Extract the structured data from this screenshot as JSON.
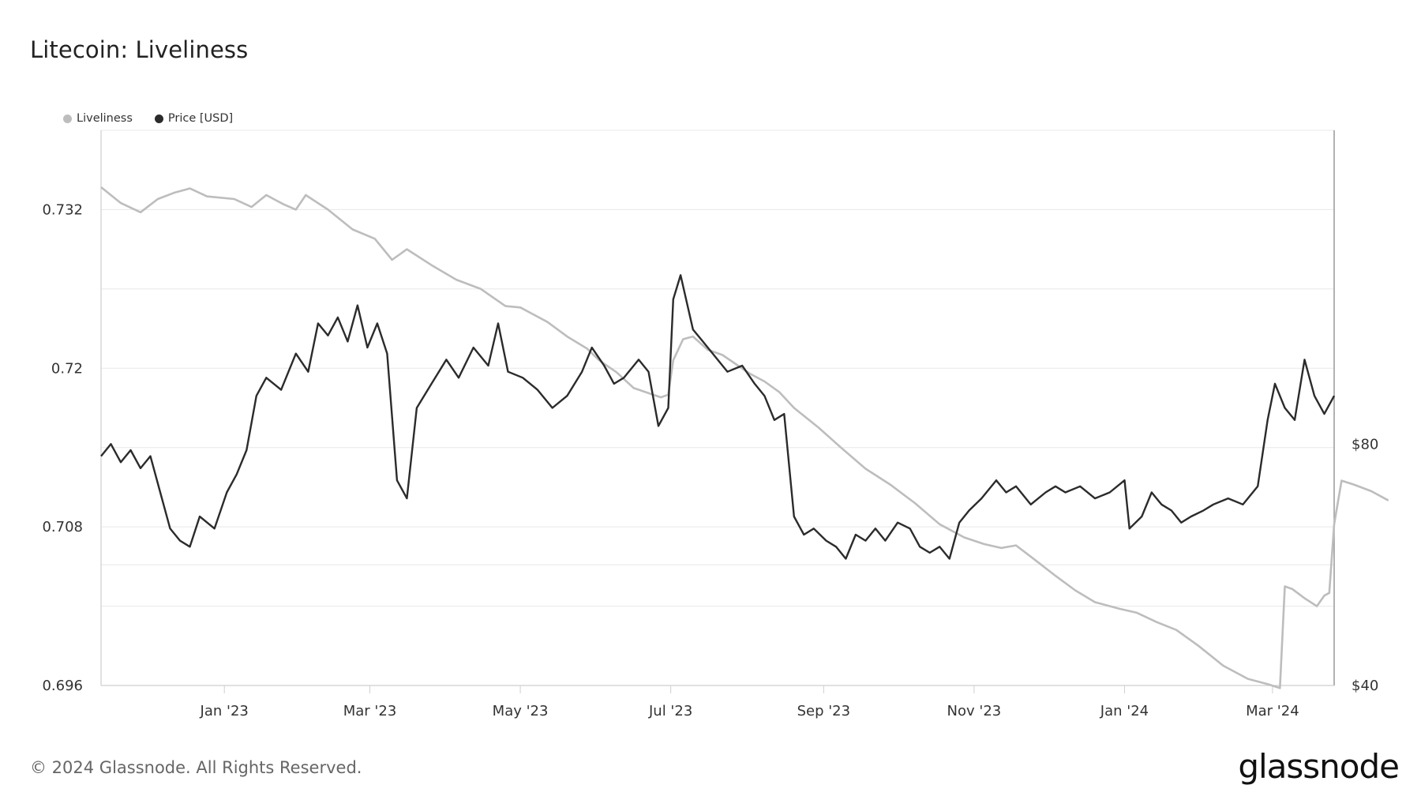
{
  "title": "Litecoin: Liveliness",
  "footer": "© 2024 Glassnode. All Rights Reserved.",
  "brand": "glassnode",
  "colors": {
    "liveliness": "#bdbdbd",
    "price": "#2b2b2b",
    "grid": "#e8e8e8",
    "axis": "#cfcfcf"
  },
  "chart_data": {
    "type": "line",
    "title": "Litecoin: Liveliness",
    "legend_position": "top-left",
    "grid": true,
    "x_range": [
      "2022-11-12",
      "2024-03-26"
    ],
    "x_ticks": [
      "Jan '23",
      "Mar '23",
      "May '23",
      "Jul '23",
      "Sep '23",
      "Nov '23",
      "Jan '24",
      "Mar '24"
    ],
    "x_tick_dates": [
      "2023-01-01",
      "2023-03-01",
      "2023-05-01",
      "2023-07-01",
      "2023-09-01",
      "2023-11-01",
      "2024-01-01",
      "2024-03-01"
    ],
    "y_left": {
      "ticks": [
        "0.732",
        "0.72",
        "0.708",
        "0.696"
      ],
      "ylim": [
        0.696,
        0.738
      ]
    },
    "y_right": {
      "ticks": [
        "$80",
        "$40"
      ],
      "ylim": [
        40,
        132
      ]
    },
    "series": [
      {
        "name": "Liveliness",
        "axis": "left",
        "points": [
          [
            "2022-11-12",
            0.7337
          ],
          [
            "2022-11-20",
            0.7325
          ],
          [
            "2022-11-28",
            0.7318
          ],
          [
            "2022-12-05",
            0.7328
          ],
          [
            "2022-12-12",
            0.7333
          ],
          [
            "2022-12-18",
            0.7336
          ],
          [
            "2022-12-25",
            0.733
          ],
          [
            "2023-01-05",
            0.7328
          ],
          [
            "2023-01-12",
            0.7322
          ],
          [
            "2023-01-18",
            0.7331
          ],
          [
            "2023-01-25",
            0.7324
          ],
          [
            "2023-01-30",
            0.732
          ],
          [
            "2023-02-03",
            0.7331
          ],
          [
            "2023-02-12",
            0.732
          ],
          [
            "2023-02-22",
            0.7305
          ],
          [
            "2023-03-03",
            0.7298
          ],
          [
            "2023-03-10",
            0.7282
          ],
          [
            "2023-03-16",
            0.729
          ],
          [
            "2023-03-26",
            0.7278
          ],
          [
            "2023-04-05",
            0.7267
          ],
          [
            "2023-04-15",
            0.726
          ],
          [
            "2023-04-25",
            0.7247
          ],
          [
            "2023-05-01",
            0.7246
          ],
          [
            "2023-05-05",
            0.7242
          ],
          [
            "2023-05-12",
            0.7235
          ],
          [
            "2023-05-20",
            0.7224
          ],
          [
            "2023-05-28",
            0.7215
          ],
          [
            "2023-06-02",
            0.7206
          ],
          [
            "2023-06-09",
            0.7197
          ],
          [
            "2023-06-16",
            0.7185
          ],
          [
            "2023-06-27",
            0.7178
          ],
          [
            "2023-06-30",
            0.718
          ],
          [
            "2023-07-02",
            0.7206
          ],
          [
            "2023-07-06",
            0.7222
          ],
          [
            "2023-07-10",
            0.7224
          ],
          [
            "2023-07-16",
            0.7214
          ],
          [
            "2023-07-22",
            0.721
          ],
          [
            "2023-08-02",
            0.7196
          ],
          [
            "2023-08-08",
            0.719
          ],
          [
            "2023-08-14",
            0.7182
          ],
          [
            "2023-08-20",
            0.717
          ],
          [
            "2023-08-30",
            0.7155
          ],
          [
            "2023-09-08",
            0.714
          ],
          [
            "2023-09-18",
            0.7124
          ],
          [
            "2023-09-28",
            0.7112
          ],
          [
            "2023-10-08",
            0.7098
          ],
          [
            "2023-10-18",
            0.7082
          ],
          [
            "2023-10-28",
            0.7072
          ],
          [
            "2023-11-05",
            0.7067
          ],
          [
            "2023-11-12",
            0.7064
          ],
          [
            "2023-11-18",
            0.7066
          ],
          [
            "2023-11-25",
            0.7056
          ],
          [
            "2023-12-04",
            0.7043
          ],
          [
            "2023-12-12",
            0.7032
          ],
          [
            "2023-12-20",
            0.7023
          ],
          [
            "2023-12-30",
            0.7018
          ],
          [
            "2024-01-06",
            0.7015
          ],
          [
            "2024-01-14",
            0.7008
          ],
          [
            "2024-01-22",
            0.7002
          ],
          [
            "2024-01-31",
            0.699
          ],
          [
            "2024-02-10",
            0.6975
          ],
          [
            "2024-02-20",
            0.6965
          ],
          [
            "2024-02-28",
            0.6961
          ],
          [
            "2024-03-04",
            0.6958
          ],
          [
            "2024-03-06",
            0.7035
          ],
          [
            "2024-03-09",
            0.7033
          ],
          [
            "2024-03-14",
            0.7026
          ],
          [
            "2024-03-19",
            0.702
          ],
          [
            "2024-03-22",
            0.7028
          ],
          [
            "2024-03-24",
            0.703
          ],
          [
            "2024-03-26",
            0.7082
          ],
          [
            "2024-03-29",
            0.7115
          ],
          [
            "2024-04-03",
            0.7112
          ],
          [
            "2024-04-10",
            0.7107
          ],
          [
            "2024-04-17",
            0.71
          ]
        ]
      },
      {
        "name": "Price [USD]",
        "axis": "right",
        "points": [
          [
            "2022-11-12",
            78
          ],
          [
            "2022-11-16",
            80
          ],
          [
            "2022-11-20",
            77
          ],
          [
            "2022-11-24",
            79
          ],
          [
            "2022-11-28",
            76
          ],
          [
            "2022-12-02",
            78
          ],
          [
            "2022-12-06",
            72
          ],
          [
            "2022-12-10",
            66
          ],
          [
            "2022-12-14",
            64
          ],
          [
            "2022-12-18",
            63
          ],
          [
            "2022-12-22",
            68
          ],
          [
            "2022-12-28",
            66
          ],
          [
            "2023-01-02",
            72
          ],
          [
            "2023-01-06",
            75
          ],
          [
            "2023-01-10",
            79
          ],
          [
            "2023-01-14",
            88
          ],
          [
            "2023-01-18",
            91
          ],
          [
            "2023-01-24",
            89
          ],
          [
            "2023-01-30",
            95
          ],
          [
            "2023-02-04",
            92
          ],
          [
            "2023-02-08",
            100
          ],
          [
            "2023-02-12",
            98
          ],
          [
            "2023-02-16",
            101
          ],
          [
            "2023-02-20",
            97
          ],
          [
            "2023-02-24",
            103
          ],
          [
            "2023-02-28",
            96
          ],
          [
            "2023-03-04",
            100
          ],
          [
            "2023-03-08",
            95
          ],
          [
            "2023-03-12",
            74
          ],
          [
            "2023-03-16",
            71
          ],
          [
            "2023-03-20",
            86
          ],
          [
            "2023-03-26",
            90
          ],
          [
            "2023-04-01",
            94
          ],
          [
            "2023-04-06",
            91
          ],
          [
            "2023-04-12",
            96
          ],
          [
            "2023-04-18",
            93
          ],
          [
            "2023-04-22",
            100
          ],
          [
            "2023-04-26",
            92
          ],
          [
            "2023-05-02",
            91
          ],
          [
            "2023-05-08",
            89
          ],
          [
            "2023-05-14",
            86
          ],
          [
            "2023-05-20",
            88
          ],
          [
            "2023-05-26",
            92
          ],
          [
            "2023-05-30",
            96
          ],
          [
            "2023-06-04",
            93
          ],
          [
            "2023-06-08",
            90
          ],
          [
            "2023-06-12",
            91
          ],
          [
            "2023-06-18",
            94
          ],
          [
            "2023-06-22",
            92
          ],
          [
            "2023-06-26",
            83
          ],
          [
            "2023-06-30",
            86
          ],
          [
            "2023-07-02",
            104
          ],
          [
            "2023-07-05",
            108
          ],
          [
            "2023-07-10",
            99
          ],
          [
            "2023-07-14",
            97
          ],
          [
            "2023-07-18",
            95
          ],
          [
            "2023-07-24",
            92
          ],
          [
            "2023-07-30",
            93
          ],
          [
            "2023-08-04",
            90
          ],
          [
            "2023-08-08",
            88
          ],
          [
            "2023-08-12",
            84
          ],
          [
            "2023-08-16",
            85
          ],
          [
            "2023-08-20",
            68
          ],
          [
            "2023-08-24",
            65
          ],
          [
            "2023-08-28",
            66
          ],
          [
            "2023-09-02",
            64
          ],
          [
            "2023-09-06",
            63
          ],
          [
            "2023-09-10",
            61
          ],
          [
            "2023-09-14",
            65
          ],
          [
            "2023-09-18",
            64
          ],
          [
            "2023-09-22",
            66
          ],
          [
            "2023-09-26",
            64
          ],
          [
            "2023-10-01",
            67
          ],
          [
            "2023-10-06",
            66
          ],
          [
            "2023-10-10",
            63
          ],
          [
            "2023-10-14",
            62
          ],
          [
            "2023-10-18",
            63
          ],
          [
            "2023-10-22",
            61
          ],
          [
            "2023-10-26",
            67
          ],
          [
            "2023-10-30",
            69
          ],
          [
            "2023-11-04",
            71
          ],
          [
            "2023-11-10",
            74
          ],
          [
            "2023-11-14",
            72
          ],
          [
            "2023-11-18",
            73
          ],
          [
            "2023-11-24",
            70
          ],
          [
            "2023-11-30",
            72
          ],
          [
            "2023-12-04",
            73
          ],
          [
            "2023-12-08",
            72
          ],
          [
            "2023-12-14",
            73
          ],
          [
            "2023-12-20",
            71
          ],
          [
            "2023-12-26",
            72
          ],
          [
            "2024-01-01",
            74
          ],
          [
            "2024-01-03",
            66
          ],
          [
            "2024-01-08",
            68
          ],
          [
            "2024-01-12",
            72
          ],
          [
            "2024-01-16",
            70
          ],
          [
            "2024-01-20",
            69
          ],
          [
            "2024-01-24",
            67
          ],
          [
            "2024-01-28",
            68
          ],
          [
            "2024-02-02",
            69
          ],
          [
            "2024-02-06",
            70
          ],
          [
            "2024-02-12",
            71
          ],
          [
            "2024-02-18",
            70
          ],
          [
            "2024-02-24",
            73
          ],
          [
            "2024-02-28",
            84
          ],
          [
            "2024-03-02",
            90
          ],
          [
            "2024-03-06",
            86
          ],
          [
            "2024-03-10",
            84
          ],
          [
            "2024-03-14",
            94
          ],
          [
            "2024-03-18",
            88
          ],
          [
            "2024-03-22",
            85
          ],
          [
            "2024-03-26",
            88
          ]
        ]
      }
    ]
  }
}
